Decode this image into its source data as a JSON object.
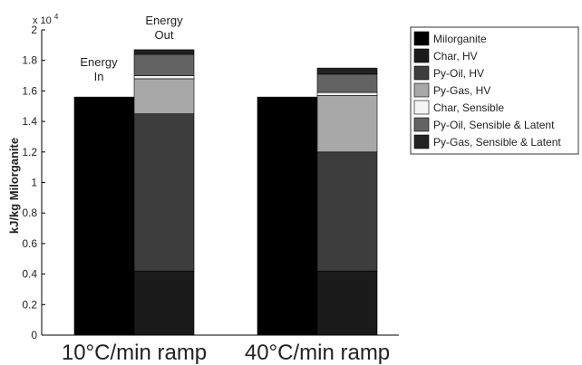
{
  "chart_data": {
    "type": "bar",
    "stacked": true,
    "ylabel": "kJ/kg Milorganite",
    "y_multiplier": "x 10^4",
    "y_multiplier_base": "x 10",
    "y_multiplier_exp": "4",
    "ylim": [
      0,
      2
    ],
    "yticks": [
      "0",
      "0.2",
      "0.4",
      "0.6",
      "0.8",
      "1",
      "1.2",
      "1.4",
      "1.6",
      "1.8",
      "2"
    ],
    "categories": [
      "10°C/min ramp",
      "40°C/min ramp"
    ],
    "bar_labels": {
      "energy_in": [
        "Energy",
        "In"
      ],
      "energy_out": [
        "Energy",
        "Out"
      ]
    },
    "series": [
      {
        "name": "Milorganite",
        "color": "#000000",
        "stack": "in",
        "values": [
          1.56,
          1.56
        ]
      },
      {
        "name": "Char, HV",
        "color": "#1a1a1a",
        "stack": "out",
        "values": [
          0.42,
          0.42
        ]
      },
      {
        "name": "Py-Oil, HV",
        "color": "#3d3d3d",
        "stack": "out",
        "values": [
          1.03,
          0.78
        ]
      },
      {
        "name": "Py-Gas, HV",
        "color": "#a8a8a8",
        "stack": "out",
        "values": [
          0.23,
          0.37
        ]
      },
      {
        "name": "Char, Sensible",
        "color": "#f4f4f4",
        "stack": "out",
        "values": [
          0.02,
          0.02
        ]
      },
      {
        "name": "Py-Oil, Sensible & Latent",
        "color": "#636363",
        "stack": "out",
        "values": [
          0.14,
          0.12
        ]
      },
      {
        "name": "Py-Gas, Sensible & Latent",
        "color": "#222222",
        "stack": "out",
        "values": [
          0.03,
          0.04
        ]
      }
    ],
    "legend_position": "top-right",
    "grid": false
  }
}
